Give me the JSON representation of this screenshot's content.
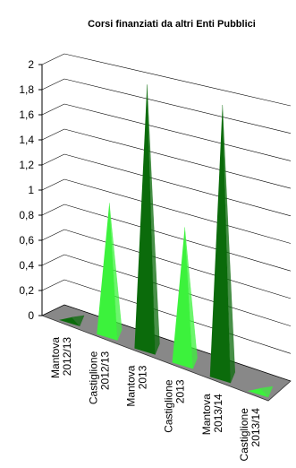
{
  "chart_data": {
    "type": "pyramid3d",
    "title": "Corsi finanziati da altri Enti Pubblici",
    "categories": [
      "Mantova 2012/13",
      "Castiglione 2012/13",
      "Mantova 2013",
      "Castiglione 2013",
      "Mantova 2013/14",
      "Castiglione 2013/14"
    ],
    "values": [
      0,
      1,
      2,
      1,
      2,
      0
    ],
    "colors": [
      "#0b6b0b",
      "#3cf23c"
    ],
    "ylim": [
      0,
      2
    ],
    "yticks": [
      0,
      {
        "value": 0.2,
        "label": "0,2"
      },
      {
        "value": 0.4,
        "label": "0,4"
      },
      {
        "value": 0.6,
        "label": "0,6"
      },
      {
        "value": 0.8,
        "label": "0,8"
      },
      1,
      {
        "value": 1.2,
        "label": "1,2"
      },
      {
        "value": 1.4,
        "label": "1,4"
      },
      {
        "value": 1.6,
        "label": "1,6"
      },
      {
        "value": 1.8,
        "label": "1,8"
      },
      2
    ],
    "grid": true
  }
}
